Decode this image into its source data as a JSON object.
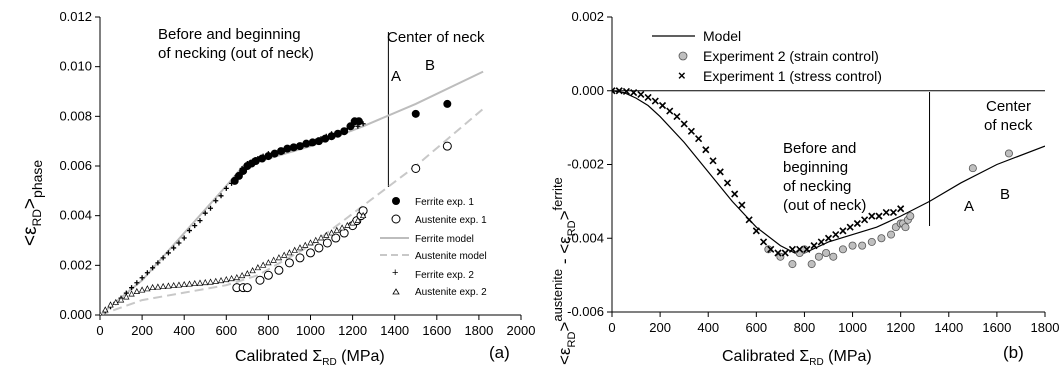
{
  "chart_data": [
    {
      "id": "a",
      "type": "scatter",
      "panel_label": "(a)",
      "xlim": [
        0,
        2000
      ],
      "ylim": [
        0,
        0.012
      ],
      "xticks": [
        "0",
        "200",
        "400",
        "600",
        "800",
        "1000",
        "1200",
        "1400",
        "1600",
        "1800",
        "2000"
      ],
      "yticks": [
        "0.000",
        "0.002",
        "0.004",
        "0.006",
        "0.008",
        "0.010",
        "0.012"
      ],
      "xlabel": {
        "main": "Calibrated Σ",
        "sub": "RD",
        "unit": " (MPa)"
      },
      "ylabel": {
        "pre": "<ε",
        "sub1": "RD",
        "mid": ">",
        "sub2": "phase"
      },
      "annotations": {
        "before_line1": "Before and beginning",
        "before_line2": "of necking (out of neck)",
        "center": "Center of neck",
        "A": "A",
        "B": "B"
      },
      "legend": [
        "Ferrite exp. 1",
        "Austenite exp. 1",
        "Ferrite model",
        "Austenite model",
        "Ferrite exp. 2",
        "Austenite exp. 2"
      ],
      "divider_x": 1370,
      "series": [
        {
          "name": "Ferrite exp. 1",
          "marker": "filled-circle",
          "x": [
            640,
            660,
            680,
            700,
            720,
            740,
            770,
            800,
            830,
            860,
            890,
            920,
            950,
            980,
            1010,
            1040,
            1070,
            1100,
            1130,
            1160,
            1190,
            1210,
            1230,
            1500,
            1650
          ],
          "y": [
            0.0054,
            0.0056,
            0.0058,
            0.006,
            0.0061,
            0.0062,
            0.0063,
            0.0064,
            0.0065,
            0.0066,
            0.0067,
            0.00675,
            0.0068,
            0.0069,
            0.00695,
            0.007,
            0.0071,
            0.0072,
            0.0073,
            0.0074,
            0.0076,
            0.0078,
            0.0078,
            0.0081,
            0.0085
          ]
        },
        {
          "name": "Austenite exp. 1",
          "marker": "open-circle",
          "x": [
            650,
            680,
            700,
            760,
            800,
            850,
            900,
            950,
            1000,
            1040,
            1080,
            1120,
            1160,
            1200,
            1220,
            1240,
            1250,
            1500,
            1650
          ],
          "y": [
            0.0011,
            0.0011,
            0.0011,
            0.0014,
            0.0016,
            0.0018,
            0.0021,
            0.0023,
            0.0025,
            0.0027,
            0.0029,
            0.0031,
            0.0033,
            0.0036,
            0.0038,
            0.004,
            0.0042,
            0.0059,
            0.0068
          ]
        },
        {
          "name": "Ferrite model",
          "marker": "line-solid",
          "x": [
            0,
            200,
            400,
            600,
            680,
            1000,
            1250,
            1500,
            1820
          ],
          "y": [
            0,
            0.0014,
            0.0033,
            0.0052,
            0.006,
            0.0068,
            0.0076,
            0.0085,
            0.0098
          ]
        },
        {
          "name": "Austenite model",
          "marker": "line-dashed",
          "x": [
            0,
            200,
            400,
            600,
            750,
            1000,
            1250,
            1500,
            1820
          ],
          "y": [
            0,
            0.0006,
            0.0009,
            0.0012,
            0.0016,
            0.0028,
            0.0044,
            0.006,
            0.0083
          ]
        },
        {
          "name": "Ferrite exp. 2",
          "marker": "plus",
          "x": [
            0,
            25,
            50,
            75,
            100,
            125,
            150,
            175,
            200,
            225,
            250,
            275,
            300,
            325,
            350,
            375,
            400,
            425,
            450,
            475,
            500,
            525,
            550,
            575,
            600,
            625,
            650,
            675,
            700,
            725,
            750,
            775,
            800,
            825,
            850,
            875,
            900,
            925,
            950,
            975,
            1000,
            1025,
            1050,
            1075,
            1100,
            1125,
            1150,
            1175,
            1200,
            1225,
            1250
          ],
          "y": [
            0,
            0.00016,
            0.00033,
            0.0005,
            0.00068,
            0.00088,
            0.0011,
            0.0013,
            0.0015,
            0.0017,
            0.0019,
            0.0021,
            0.0023,
            0.0025,
            0.0027,
            0.0029,
            0.0031,
            0.0034,
            0.0036,
            0.0038,
            0.0041,
            0.0043,
            0.0046,
            0.0048,
            0.0051,
            0.0053,
            0.0056,
            0.0059,
            0.0061,
            0.0062,
            0.0063,
            0.0064,
            0.0065,
            0.0065,
            0.0066,
            0.0066,
            0.0067,
            0.0068,
            0.0068,
            0.0069,
            0.0069,
            0.007,
            0.0071,
            0.0072,
            0.0073,
            0.0073,
            0.0074,
            0.0075,
            0.0076,
            0.0076,
            0.0077
          ]
        },
        {
          "name": "Austenite exp. 2",
          "marker": "triangle",
          "x": [
            0,
            25,
            50,
            75,
            100,
            125,
            150,
            175,
            200,
            225,
            250,
            275,
            300,
            325,
            350,
            375,
            400,
            425,
            450,
            475,
            500,
            525,
            550,
            575,
            600,
            625,
            650,
            675,
            700,
            725,
            750,
            775,
            800,
            825,
            850,
            875,
            900,
            925,
            950,
            975,
            1000,
            1025,
            1050,
            1075,
            1100,
            1125,
            1150,
            1175,
            1200,
            1225,
            1250
          ],
          "y": [
            0,
            0.0002,
            0.0004,
            0.0005,
            0.0006,
            0.00072,
            0.00084,
            0.00094,
            0.001,
            0.00105,
            0.0011,
            0.00112,
            0.00114,
            0.00116,
            0.00118,
            0.0012,
            0.00122,
            0.00124,
            0.00126,
            0.00128,
            0.0013,
            0.00132,
            0.00135,
            0.00138,
            0.00142,
            0.00146,
            0.0015,
            0.00158,
            0.00166,
            0.00178,
            0.0019,
            0.002,
            0.0021,
            0.0022,
            0.0023,
            0.0024,
            0.0025,
            0.0026,
            0.0027,
            0.0028,
            0.0029,
            0.003,
            0.0031,
            0.0032,
            0.0033,
            0.0034,
            0.0035,
            0.0036,
            0.0037,
            0.0038,
            0.004
          ]
        }
      ]
    },
    {
      "id": "b",
      "type": "scatter",
      "panel_label": "(b)",
      "xlim": [
        0,
        1800
      ],
      "ylim": [
        -0.006,
        0.002
      ],
      "xticks": [
        "0",
        "200",
        "400",
        "600",
        "800",
        "1000",
        "1200",
        "1400",
        "1600",
        "1800"
      ],
      "yticks": [
        "-0.006",
        "-0.004",
        "-0.002",
        "0.000",
        "0.002"
      ],
      "xlabel": {
        "main": "Calibrated Σ",
        "sub": "RD",
        "unit": " (MPa)"
      },
      "ylabel": {
        "pre": "<ε",
        "sub1": "RD",
        "mid": ">",
        "sup1": "austenite",
        "minus": " - <ε",
        "sub2": "RD",
        "end": ">",
        "sup2": "ferrite"
      },
      "annotations": {
        "before_lines": [
          "Before and",
          "beginning",
          "of necking",
          "(out of neck)"
        ],
        "center_lines": [
          "Center",
          "of neck"
        ],
        "A": "A",
        "B": "B"
      },
      "legend": [
        "Model",
        "Experiment 2 (strain control)",
        "Experiment 1 (stress control)"
      ],
      "divider_x": 1320,
      "zero_line": true,
      "series": [
        {
          "name": "Model",
          "marker": "line-solid",
          "x": [
            0,
            50,
            100,
            150,
            200,
            300,
            400,
            500,
            600,
            700,
            760,
            800,
            900,
            1000,
            1100,
            1200,
            1320,
            1450,
            1600,
            1800
          ],
          "y": [
            0,
            -5e-05,
            -0.0002,
            -0.0004,
            -0.0007,
            -0.0014,
            -0.0022,
            -0.003,
            -0.0037,
            -0.0042,
            -0.0044,
            -0.0044,
            -0.0041,
            -0.0039,
            -0.0037,
            -0.0034,
            -0.003,
            -0.0025,
            -0.002,
            -0.0015
          ]
        },
        {
          "name": "Experiment 2 (strain control)",
          "marker": "grey-circle",
          "x": [
            650,
            700,
            750,
            780,
            800,
            830,
            860,
            890,
            920,
            960,
            1000,
            1040,
            1080,
            1120,
            1160,
            1180,
            1200,
            1210,
            1220,
            1230,
            1240,
            1500,
            1650
          ],
          "y": [
            -0.0043,
            -0.0045,
            -0.0047,
            -0.0044,
            -0.0043,
            -0.0047,
            -0.0045,
            -0.0044,
            -0.0045,
            -0.0043,
            -0.0042,
            -0.0042,
            -0.0041,
            -0.004,
            -0.0039,
            -0.0037,
            -0.0036,
            -0.0036,
            -0.0037,
            -0.0035,
            -0.0034,
            -0.0021,
            -0.0017
          ]
        },
        {
          "name": "Experiment 1 (stress control)",
          "marker": "x",
          "x": [
            0,
            30,
            60,
            90,
            120,
            150,
            180,
            210,
            240,
            270,
            300,
            330,
            360,
            390,
            420,
            450,
            480,
            510,
            540,
            570,
            600,
            630,
            660,
            690,
            720,
            750,
            780,
            810,
            840,
            870,
            900,
            930,
            960,
            990,
            1020,
            1050,
            1080,
            1110,
            1140,
            1170,
            1200
          ],
          "y": [
            0,
            0,
            -2e-05,
            -5e-05,
            -0.0001,
            -0.00018,
            -0.00028,
            -0.0004,
            -0.00055,
            -0.0007,
            -0.0009,
            -0.0011,
            -0.0013,
            -0.0016,
            -0.0019,
            -0.0022,
            -0.0025,
            -0.0028,
            -0.0031,
            -0.0035,
            -0.0038,
            -0.0041,
            -0.0043,
            -0.0044,
            -0.0044,
            -0.0043,
            -0.0043,
            -0.0043,
            -0.0042,
            -0.0041,
            -0.004,
            -0.0039,
            -0.0038,
            -0.0037,
            -0.0036,
            -0.0035,
            -0.0034,
            -0.0034,
            -0.0033,
            -0.0033,
            -0.0032
          ]
        }
      ]
    }
  ]
}
